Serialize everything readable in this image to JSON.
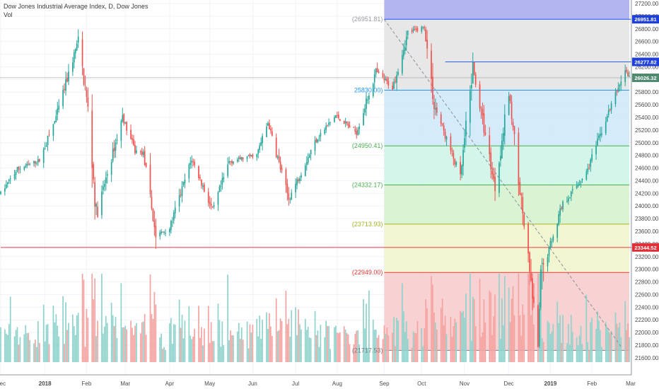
{
  "header": {
    "title": "Dow Jones Industrial Average Index, D, Dow Jones",
    "volume_label": "Vol"
  },
  "chart_data": {
    "type": "candlestick",
    "title": "Dow Jones Industrial Average Index, D, Dow Jones",
    "y_axis": {
      "range": [
        21420,
        27200
      ],
      "ticks": [
        21600,
        21800,
        22000,
        22200,
        22400,
        22600,
        22800,
        23000,
        23200,
        23400,
        23600,
        23800,
        24000,
        24200,
        24400,
        24600,
        24800,
        25000,
        25200,
        25400,
        25600,
        25800,
        26000,
        26200,
        26400,
        26600,
        26800,
        27000,
        27200
      ],
      "tick_labels": [
        "21600.00",
        "21800.00",
        "22000.00",
        "22200.00",
        "22400.00",
        "22600.00",
        "22800.00",
        "23000.00",
        "23200.00",
        "23400.00",
        "23600.00",
        "23800.00",
        "24000.00",
        "24200.00",
        "24400.00",
        "24600.00",
        "24800.00",
        "25000.00",
        "25200.00",
        "25400.00",
        "25600.00",
        "25800.00",
        "26000.00",
        "26200.00",
        "26400.00",
        "26600.00",
        "26800.00",
        "27000.00",
        "27200.00"
      ]
    },
    "x_axis": {
      "range": [
        "2017-12-01",
        "2019-03-01"
      ],
      "labels": [
        {
          "date": "2017-12-01",
          "label": "Dec"
        },
        {
          "date": "2018-01-02",
          "label": "2018"
        },
        {
          "date": "2018-02-01",
          "label": "Feb"
        },
        {
          "date": "2018-03-01",
          "label": "Mar"
        },
        {
          "date": "2018-04-02",
          "label": "Apr"
        },
        {
          "date": "2018-05-01",
          "label": "May"
        },
        {
          "date": "2018-06-01",
          "label": "Jun"
        },
        {
          "date": "2018-07-02",
          "label": "Jul"
        },
        {
          "date": "2018-08-01",
          "label": "Aug"
        },
        {
          "date": "2018-09-04",
          "label": "Sep"
        },
        {
          "date": "2018-10-01",
          "label": "Oct"
        },
        {
          "date": "2018-11-01",
          "label": "Nov"
        },
        {
          "date": "2018-12-03",
          "label": "Dec"
        },
        {
          "date": "2019-01-02",
          "label": "2019"
        },
        {
          "date": "2019-02-01",
          "label": "Feb"
        },
        {
          "date": "2019-03-01",
          "label": "Mar"
        }
      ]
    },
    "price_path": [
      [
        "2017-12-01",
        24200
      ],
      [
        "2017-12-13",
        24580
      ],
      [
        "2017-12-29",
        24720
      ],
      [
        "2018-01-10",
        25400
      ],
      [
        "2018-01-26",
        26620
      ],
      [
        "2018-02-02",
        25530
      ],
      [
        "2018-02-08",
        23860
      ],
      [
        "2018-02-27",
        25410
      ],
      [
        "2018-03-08",
        24870
      ],
      [
        "2018-03-14",
        24830
      ],
      [
        "2018-03-23",
        23530
      ],
      [
        "2018-04-02",
        23650
      ],
      [
        "2018-04-18",
        24750
      ],
      [
        "2018-05-03",
        23920
      ],
      [
        "2018-05-15",
        24700
      ],
      [
        "2018-06-04",
        24810
      ],
      [
        "2018-06-12",
        25320
      ],
      [
        "2018-06-27",
        24110
      ],
      [
        "2018-07-17",
        25060
      ],
      [
        "2018-07-31",
        25430
      ],
      [
        "2018-08-15",
        25160
      ],
      [
        "2018-08-29",
        26120
      ],
      [
        "2018-09-10",
        25870
      ],
      [
        "2018-09-21",
        26740
      ],
      [
        "2018-10-03",
        26830
      ],
      [
        "2018-10-10",
        25600
      ],
      [
        "2018-10-29",
        24450
      ],
      [
        "2018-11-07",
        26180
      ],
      [
        "2018-11-23",
        24290
      ],
      [
        "2018-12-03",
        25800
      ],
      [
        "2018-12-24",
        21790
      ],
      [
        "2018-12-26",
        22880
      ],
      [
        "2019-01-10",
        24000
      ],
      [
        "2019-01-28",
        24530
      ],
      [
        "2019-02-12",
        25420
      ],
      [
        "2019-02-25",
        26150
      ],
      [
        "2019-02-28",
        26026
      ]
    ],
    "current_price": "26026.32",
    "price_lines": [
      {
        "value": 26951.81,
        "label": "26951.81",
        "color": "#2962ff",
        "from": "2018-09-04"
      },
      {
        "value": 26277.82,
        "label": "26277.82",
        "color": "#2962ff",
        "from": "2018-10-18"
      },
      {
        "value": 23344.52,
        "label": "23344.52",
        "color": "#f23645",
        "from": "2017-12-01"
      }
    ],
    "fibonacci": {
      "from": "2018-09-04",
      "to": "2019-02-28",
      "levels": [
        {
          "value": 26951.81,
          "label": "(26951.81)",
          "color": "#9598a1",
          "fill": "#b2b5f0"
        },
        {
          "value": 25830.0,
          "label": "25830.00)",
          "color": "#2196f3",
          "fill": "#e3e3e3"
        },
        {
          "value": 24950.41,
          "label": "(24950.41)",
          "color": "#4caf50",
          "fill": "#cde7f9"
        },
        {
          "value": 24332.17,
          "label": "(24332.17)",
          "color": "#4caf50",
          "fill": "#cdf3e6"
        },
        {
          "value": 23713.93,
          "label": "(23713.93)",
          "color": "#a7b229",
          "fill": "#d3f2cb"
        },
        {
          "value": 22949.0,
          "label": "(22949.00)",
          "color": "#e53935",
          "fill": "#eef5c9"
        },
        {
          "value": 21717.53,
          "label": "(21717.53)",
          "color": "#787b86",
          "fill": "#f7caca"
        }
      ]
    },
    "trend_line": {
      "from": [
        "2018-09-04",
        26950
      ],
      "to": [
        "2019-02-22",
        21780
      ]
    },
    "volume": {
      "min": 0.4,
      "max": 3.2
    },
    "colors": {
      "up": "#26a69a",
      "down": "#ef5350",
      "up_vol": "#8fd3cc",
      "down_vol": "#f5a3a1"
    }
  }
}
